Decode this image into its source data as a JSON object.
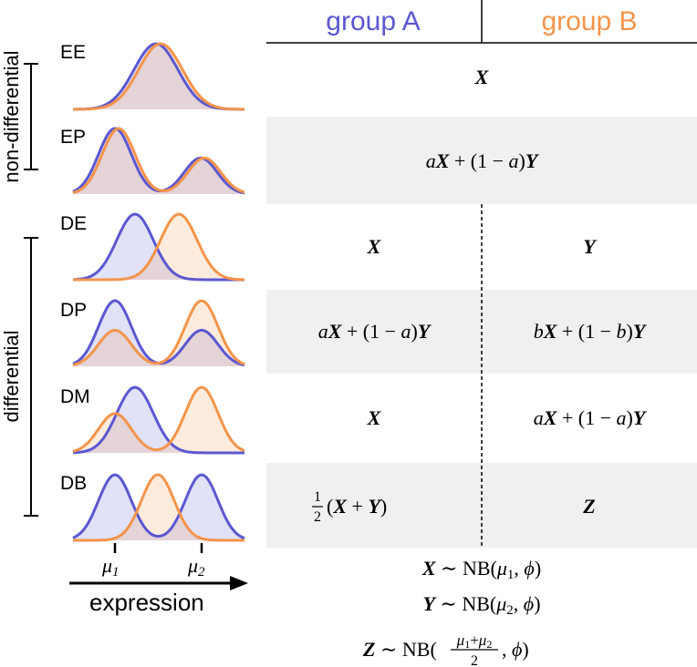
{
  "columns": {
    "group_a": "group A",
    "group_b": "group B"
  },
  "colors": {
    "group_a": "#5b57d1",
    "group_b": "#f4944a",
    "shade": "#f0f0f0"
  },
  "brackets": {
    "non_differential": "non-differential",
    "differential": "differential"
  },
  "rows": [
    {
      "code": "EE",
      "shaded": false,
      "shared": true,
      "a": [
        "X"
      ],
      "b": []
    },
    {
      "code": "EP",
      "shaded": true,
      "shared": true,
      "a": [
        "aX + (1 − a)Y"
      ],
      "b": []
    },
    {
      "code": "DE",
      "shaded": false,
      "shared": false,
      "a": [
        "X"
      ],
      "b": [
        "Y"
      ]
    },
    {
      "code": "DP",
      "shaded": true,
      "shared": false,
      "a": [
        "aX + (1 − a)Y"
      ],
      "b": [
        "bX + (1 − b)Y"
      ]
    },
    {
      "code": "DM",
      "shaded": false,
      "shared": false,
      "a": [
        "X"
      ],
      "b": [
        "aX + (1 − a)Y"
      ]
    },
    {
      "code": "DB",
      "shaded": true,
      "shared": false,
      "a": [
        "½(X + Y)"
      ],
      "b": [
        "Z"
      ]
    }
  ],
  "axis": {
    "label": "expression",
    "tick1": "μ1",
    "tick2": "μ2"
  },
  "definitions": [
    "X ∼ NB(μ1, ϕ)",
    "Y ∼ NB(μ2, ϕ)",
    "Z ∼ NB((μ1+μ2)/2, ϕ)"
  ]
}
